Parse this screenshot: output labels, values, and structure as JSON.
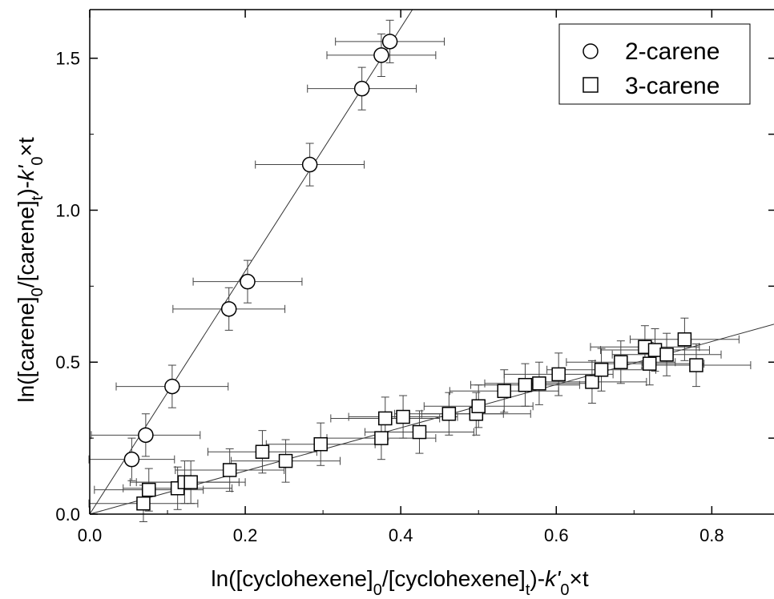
{
  "chart_data": {
    "type": "scatter",
    "xlabel": "ln([cyclohexene]0/[cyclohexene]t)-k'0×t",
    "ylabel": "ln([carene]0/[carene]t)-k'0×t",
    "xlim": [
      0.0,
      0.88
    ],
    "ylim": [
      0.0,
      1.66
    ],
    "x_ticks": [
      "0.0",
      "0.2",
      "0.4",
      "0.6",
      "0.8"
    ],
    "y_ticks": [
      "0.0",
      "0.5",
      "1.0",
      "1.5"
    ],
    "grid": false,
    "legend_position": "top-right",
    "series": [
      {
        "name": "2-carene",
        "marker": "circle",
        "fit_slope": 4.0,
        "points": [
          {
            "x": 0.054,
            "y": 0.18,
            "xerr": 0.055,
            "yerr": 0.07
          },
          {
            "x": 0.072,
            "y": 0.26,
            "xerr": 0.07,
            "yerr": 0.07
          },
          {
            "x": 0.106,
            "y": 0.42,
            "xerr": 0.072,
            "yerr": 0.07
          },
          {
            "x": 0.179,
            "y": 0.675,
            "xerr": 0.072,
            "yerr": 0.07
          },
          {
            "x": 0.203,
            "y": 0.765,
            "xerr": 0.07,
            "yerr": 0.07
          },
          {
            "x": 0.283,
            "y": 1.15,
            "xerr": 0.07,
            "yerr": 0.07
          },
          {
            "x": 0.35,
            "y": 1.4,
            "xerr": 0.07,
            "yerr": 0.07
          },
          {
            "x": 0.375,
            "y": 1.51,
            "xerr": 0.07,
            "yerr": 0.07
          },
          {
            "x": 0.386,
            "y": 1.555,
            "xerr": 0.07,
            "yerr": 0.07
          }
        ]
      },
      {
        "name": "3-carene",
        "marker": "square",
        "fit_slope": 0.71,
        "points": [
          {
            "x": 0.069,
            "y": 0.035,
            "xerr": 0.07,
            "yerr": 0.06
          },
          {
            "x": 0.076,
            "y": 0.08,
            "xerr": 0.07,
            "yerr": 0.07
          },
          {
            "x": 0.113,
            "y": 0.085,
            "xerr": 0.07,
            "yerr": 0.07
          },
          {
            "x": 0.122,
            "y": 0.105,
            "xerr": 0.07,
            "yerr": 0.07
          },
          {
            "x": 0.13,
            "y": 0.105,
            "xerr": 0.07,
            "yerr": 0.07
          },
          {
            "x": 0.18,
            "y": 0.145,
            "xerr": 0.07,
            "yerr": 0.07
          },
          {
            "x": 0.222,
            "y": 0.205,
            "xerr": 0.07,
            "yerr": 0.07
          },
          {
            "x": 0.252,
            "y": 0.175,
            "xerr": 0.07,
            "yerr": 0.07
          },
          {
            "x": 0.297,
            "y": 0.23,
            "xerr": 0.07,
            "yerr": 0.07
          },
          {
            "x": 0.375,
            "y": 0.25,
            "xerr": 0.07,
            "yerr": 0.07
          },
          {
            "x": 0.38,
            "y": 0.315,
            "xerr": 0.07,
            "yerr": 0.07
          },
          {
            "x": 0.403,
            "y": 0.32,
            "xerr": 0.07,
            "yerr": 0.07
          },
          {
            "x": 0.424,
            "y": 0.27,
            "xerr": 0.07,
            "yerr": 0.07
          },
          {
            "x": 0.462,
            "y": 0.33,
            "xerr": 0.07,
            "yerr": 0.07
          },
          {
            "x": 0.497,
            "y": 0.33,
            "xerr": 0.07,
            "yerr": 0.07
          },
          {
            "x": 0.5,
            "y": 0.355,
            "xerr": 0.07,
            "yerr": 0.07
          },
          {
            "x": 0.533,
            "y": 0.405,
            "xerr": 0.07,
            "yerr": 0.07
          },
          {
            "x": 0.56,
            "y": 0.425,
            "xerr": 0.07,
            "yerr": 0.07
          },
          {
            "x": 0.578,
            "y": 0.43,
            "xerr": 0.07,
            "yerr": 0.07
          },
          {
            "x": 0.603,
            "y": 0.46,
            "xerr": 0.07,
            "yerr": 0.07
          },
          {
            "x": 0.646,
            "y": 0.435,
            "xerr": 0.07,
            "yerr": 0.07
          },
          {
            "x": 0.658,
            "y": 0.475,
            "xerr": 0.07,
            "yerr": 0.07
          },
          {
            "x": 0.683,
            "y": 0.5,
            "xerr": 0.07,
            "yerr": 0.07
          },
          {
            "x": 0.714,
            "y": 0.55,
            "xerr": 0.07,
            "yerr": 0.07
          },
          {
            "x": 0.72,
            "y": 0.495,
            "xerr": 0.07,
            "yerr": 0.07
          },
          {
            "x": 0.727,
            "y": 0.54,
            "xerr": 0.07,
            "yerr": 0.07
          },
          {
            "x": 0.742,
            "y": 0.525,
            "xerr": 0.07,
            "yerr": 0.07
          },
          {
            "x": 0.765,
            "y": 0.575,
            "xerr": 0.07,
            "yerr": 0.07
          },
          {
            "x": 0.78,
            "y": 0.49,
            "xerr": 0.07,
            "yerr": 0.07
          }
        ]
      }
    ]
  }
}
